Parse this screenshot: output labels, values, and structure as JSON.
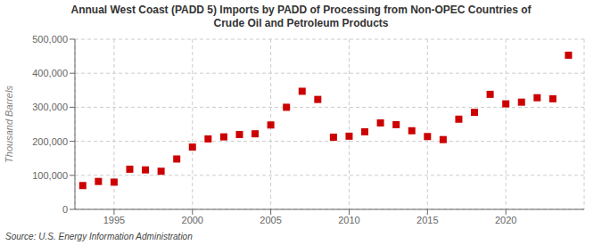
{
  "chart_data": {
    "type": "scatter",
    "title": "Annual West Coast (PADD 5) Imports by PADD of Processing from Non-OPEC Countries of\nCrude Oil and Petroleum Products",
    "y_label": "Thousand Barrels",
    "source": "Source: U.S. Energy Information Administration",
    "x": [
      1993,
      1994,
      1995,
      1996,
      1997,
      1998,
      1999,
      2000,
      2001,
      2002,
      2003,
      2004,
      2005,
      2006,
      2007,
      2008,
      2009,
      2010,
      2011,
      2012,
      2013,
      2014,
      2015,
      2016,
      2017,
      2018,
      2019,
      2020,
      2021,
      2022,
      2023,
      2024
    ],
    "values": [
      70000,
      82000,
      80000,
      118000,
      116000,
      112000,
      148000,
      183000,
      207000,
      213000,
      220000,
      222000,
      248000,
      300000,
      347000,
      323000,
      212000,
      215000,
      228000,
      254000,
      249000,
      231000,
      214000,
      205000,
      265000,
      285000,
      338000,
      310000,
      315000,
      328000,
      325000,
      453000
    ],
    "color": "#cc0000",
    "marker": "square",
    "xlim": [
      1992.5,
      2025
    ],
    "xticks": [
      1995,
      2000,
      2005,
      2010,
      2015,
      2020
    ],
    "ylim": [
      0,
      500000
    ],
    "yticks": [
      0,
      {
        "value": 100000,
        "label": "100,000"
      },
      {
        "value": 200000,
        "label": "200,000"
      },
      {
        "value": 300000,
        "label": "300,000"
      },
      {
        "value": 400000,
        "label": "400,000"
      },
      {
        "value": 500000,
        "label": "500,000"
      }
    ],
    "grid": true
  }
}
